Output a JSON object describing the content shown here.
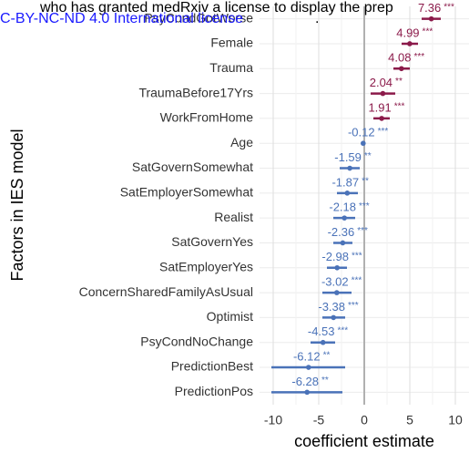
{
  "chart_data": {
    "type": "forest",
    "xlabel": "coefficient estimate",
    "ylabel": "Factors in IES model",
    "annotations": [
      "who has granted medRxiv a license to display the prep",
      "C-BY-NC-ND 4.0 International license",
      "."
    ],
    "categories": [
      "PsyCondGotWorse",
      "Female",
      "Trauma",
      "TraumaBefore17Yrs",
      "WorkFromHome",
      "Age",
      "SatGovernSomewhat",
      "SatEmployerSomewhat",
      "Realist",
      "SatGovernYes",
      "SatEmployerYes",
      "ConcernSharedFamilyAsUsual",
      "Optimist",
      "PsyCondNoChange",
      "PredictionBest",
      "PredictionPos"
    ],
    "values": [
      7.36,
      4.99,
      4.08,
      2.04,
      1.91,
      -0.12,
      -1.59,
      -1.87,
      -2.18,
      -2.36,
      -2.98,
      -3.02,
      -3.38,
      -4.53,
      -6.12,
      -6.28
    ],
    "ci_low": [
      6.3,
      4.1,
      3.2,
      0.7,
      1.0,
      -0.2,
      -2.7,
      -3.0,
      -3.4,
      -3.4,
      -4.1,
      -4.6,
      -4.6,
      -5.9,
      -10.2,
      -10.2
    ],
    "ci_high": [
      8.4,
      5.9,
      5.0,
      3.4,
      2.8,
      -0.05,
      -0.5,
      -0.7,
      -1.0,
      -1.3,
      -1.9,
      -1.4,
      -2.1,
      -3.2,
      -2.1,
      -2.4
    ],
    "stars": [
      "***",
      "***",
      "***",
      "**",
      "***",
      "***",
      "**",
      "**",
      "***",
      "***",
      "***",
      "***",
      "***",
      "***",
      "**",
      "**"
    ],
    "positive_color": "#8b1a4a",
    "negative_color": "#4a72b8",
    "xlim": [
      -11.5,
      11.5
    ],
    "xticks": [
      -10,
      -5,
      0,
      5,
      10
    ],
    "grid": true
  }
}
